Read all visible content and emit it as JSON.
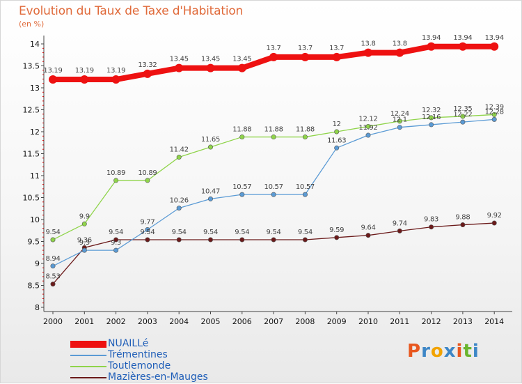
{
  "title": "Evolution du Taux de Taxe d'Habitation",
  "subtitle": "(en %)",
  "brand": {
    "text": "Proxiti",
    "colors": [
      "#e8571f",
      "#3d86c6",
      "#f2a300",
      "#3d86c6",
      "#e8571f",
      "#6ab52e",
      "#3d86c6"
    ]
  },
  "chart_data": {
    "type": "line",
    "title": "Evolution du Taux de Taxe d'Habitation",
    "ylabel": "(en %)",
    "xlabel": "",
    "x": [
      "2000",
      "2001",
      "2002",
      "2003",
      "2004",
      "2005",
      "2006",
      "2007",
      "2008",
      "2009",
      "2010",
      "2011",
      "2012",
      "2013",
      "2014"
    ],
    "y_ticks": [
      "8",
      "8.5",
      "9",
      "9.5",
      "10",
      "10.5",
      "11",
      "11.5",
      "12",
      "12.5",
      "13",
      "13.5",
      "14"
    ],
    "ylim": [
      8,
      14
    ],
    "grid": false,
    "legend_position": "bottom-left",
    "series": [
      {
        "name": "NUAILLé",
        "color": "#ee1111",
        "width": 8,
        "values": [
          13.19,
          13.19,
          13.19,
          13.32,
          13.45,
          13.45,
          13.45,
          13.7,
          13.7,
          13.7,
          13.8,
          13.8,
          13.94,
          13.94,
          13.94
        ],
        "labels": [
          "13.19",
          "13.19",
          "13.19",
          "13.32",
          "13.45",
          "13.45",
          "13.45",
          "13.7",
          "13.7",
          "13.7",
          "13.8",
          "13.8",
          "13.94",
          "13.94",
          "13.94"
        ]
      },
      {
        "name": "Trémentines",
        "color": "#5b9bd5",
        "width": 1.3,
        "values": [
          8.94,
          9.3,
          9.3,
          9.77,
          10.26,
          10.47,
          10.57,
          10.57,
          10.57,
          11.63,
          11.92,
          12.1,
          12.16,
          12.22,
          12.28
        ],
        "labels": [
          "8.94",
          "9.3",
          "9.3",
          "9.77",
          "10.26",
          "10.47",
          "10.57",
          "10.57",
          "10.57",
          "11.63",
          "11.92",
          "12.1",
          "12.16",
          "12.22",
          "12.28"
        ]
      },
      {
        "name": "Toutlemonde",
        "color": "#8fd44a",
        "width": 1.3,
        "values": [
          9.54,
          9.9,
          10.89,
          10.89,
          11.42,
          11.65,
          11.88,
          11.88,
          11.88,
          12.0,
          12.12,
          12.24,
          12.32,
          12.35,
          12.39
        ],
        "labels": [
          "9.54",
          "9.9",
          "10.89",
          "10.89",
          "11.42",
          "11.65",
          "11.88",
          "11.88",
          "11.88",
          "12",
          "12.12",
          "12.24",
          "12.32",
          "12.35",
          "12.39"
        ]
      },
      {
        "name": "Mazières-en-Mauges",
        "color": "#6b1a1a",
        "width": 1.3,
        "values": [
          8.53,
          9.36,
          9.54,
          9.54,
          9.54,
          9.54,
          9.54,
          9.54,
          9.54,
          9.59,
          9.64,
          9.74,
          9.83,
          9.88,
          9.92
        ],
        "labels": [
          "8.53",
          "9.36",
          "9.54",
          "9.54",
          "9.54",
          "9.54",
          "9.54",
          "9.54",
          "9.54",
          "9.59",
          "9.64",
          "9.74",
          "9.83",
          "9.88",
          "9.92"
        ]
      }
    ]
  }
}
